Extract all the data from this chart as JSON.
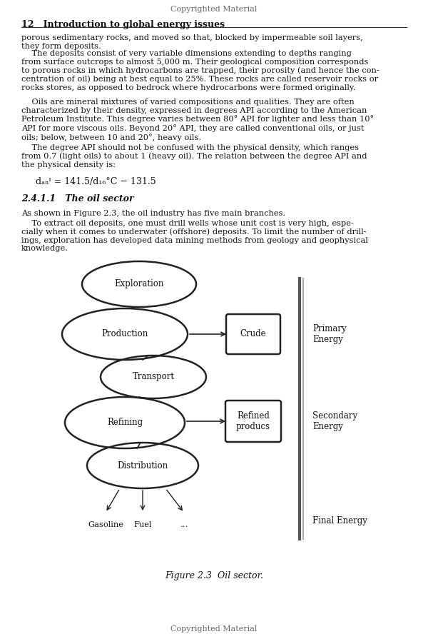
{
  "page_title_top": "Copyrighted Material",
  "chapter_header": "12   Introduction to global energy issues",
  "paragraph1": "porous sedimentary rocks, and moved so that, blocked by impermeable soil layers,\nthey form deposits.",
  "paragraph2_indent": "    The deposits consist of very variable dimensions extending to depths ranging\nfrom surface outcrops to almost 5,000 m. Their geological composition corresponds\nto porous rocks in which hydrocarbons are trapped, their porosity (and hence the con-\ncentration of oil) being at best equal to 25%. These rocks are called reservoir rocks or\nrocks stores, as opposed to bedrock where hydrocarbons were formed originally.",
  "paragraph3_indent": "    Oils are mineral mixtures of varied compositions and qualities. They are often\ncharacterized by their density, expressed in degrees API according to the American\nPetroleum Institute. This degree varies between 80° API for lighter and less than 10°\nAPI for more viscous oils. Beyond 20° API, they are called conventional oils, or just\noils; below, between 10 and 20°, heavy oils.",
  "paragraph4_indent": "    The degree API should not be confused with the physical density, which ranges\nfrom 0.7 (light oils) to about 1 (heavy oil). The relation between the degree API and\nthe physical density is:",
  "formula": "dₐₙᴵ = 141.5/d₁₆°C − 131.5",
  "section_heading": "2.4.1.1   The oil sector",
  "section_para1": "As shown in Figure 2.3, the oil industry has five main branches.",
  "section_para2_indent": "    To extract oil deposits, one must drill wells whose unit cost is very high, espe-\ncially when it comes to underwater (offshore) deposits. To limit the number of drill-\nings, exploration has developed data mining methods from geology and geophysical\nknowledge.",
  "figure_caption": "Figure 2.3  Oil sector.",
  "page_footer": "Copyrighted Material",
  "bg_color": "#ffffff",
  "text_color": "#111111",
  "line_color": "#222222",
  "gray_color": "#888888"
}
